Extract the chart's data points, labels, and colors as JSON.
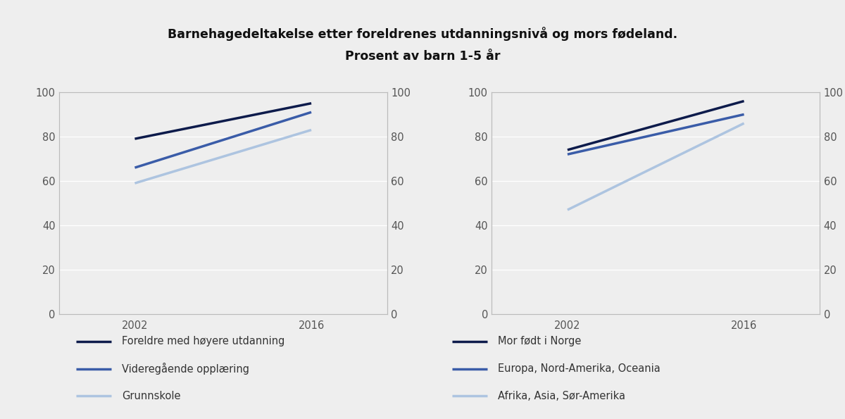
{
  "title_line1": "Barnehagedeltakelse etter foreldrenes utdanningsnivå og mors fødeland.",
  "title_line2": "Prosent av barn 1-5 år",
  "years": [
    2002,
    2016
  ],
  "left": {
    "series": [
      {
        "label": "Foreldre med høyere utdanning",
        "values": [
          79,
          95
        ],
        "color": "#0d1b4b",
        "lw": 2.5
      },
      {
        "label": "Videregående opplæring",
        "values": [
          66,
          91
        ],
        "color": "#3a5ca8",
        "lw": 2.5
      },
      {
        "label": "Grunnskole",
        "values": [
          59,
          83
        ],
        "color": "#adc4e0",
        "lw": 2.5
      }
    ]
  },
  "right": {
    "series": [
      {
        "label": "Mor født i Norge",
        "values": [
          74,
          96
        ],
        "color": "#0d1b4b",
        "lw": 2.5
      },
      {
        "label": "Europa, Nord-Amerika, Oceania",
        "values": [
          72,
          90
        ],
        "color": "#3a5ca8",
        "lw": 2.5
      },
      {
        "label": "Afrika, Asia, Sør-Amerika",
        "values": [
          47,
          86
        ],
        "color": "#adc4e0",
        "lw": 2.5
      }
    ]
  },
  "ylim": [
    0,
    100
  ],
  "yticks": [
    0,
    20,
    40,
    60,
    80,
    100
  ],
  "bg_color": "#eeeeee",
  "plot_bg": "#eeeeee",
  "legend_fontsize": 10.5,
  "title_fontsize": 12.5,
  "xlim": [
    1996,
    2022
  ]
}
